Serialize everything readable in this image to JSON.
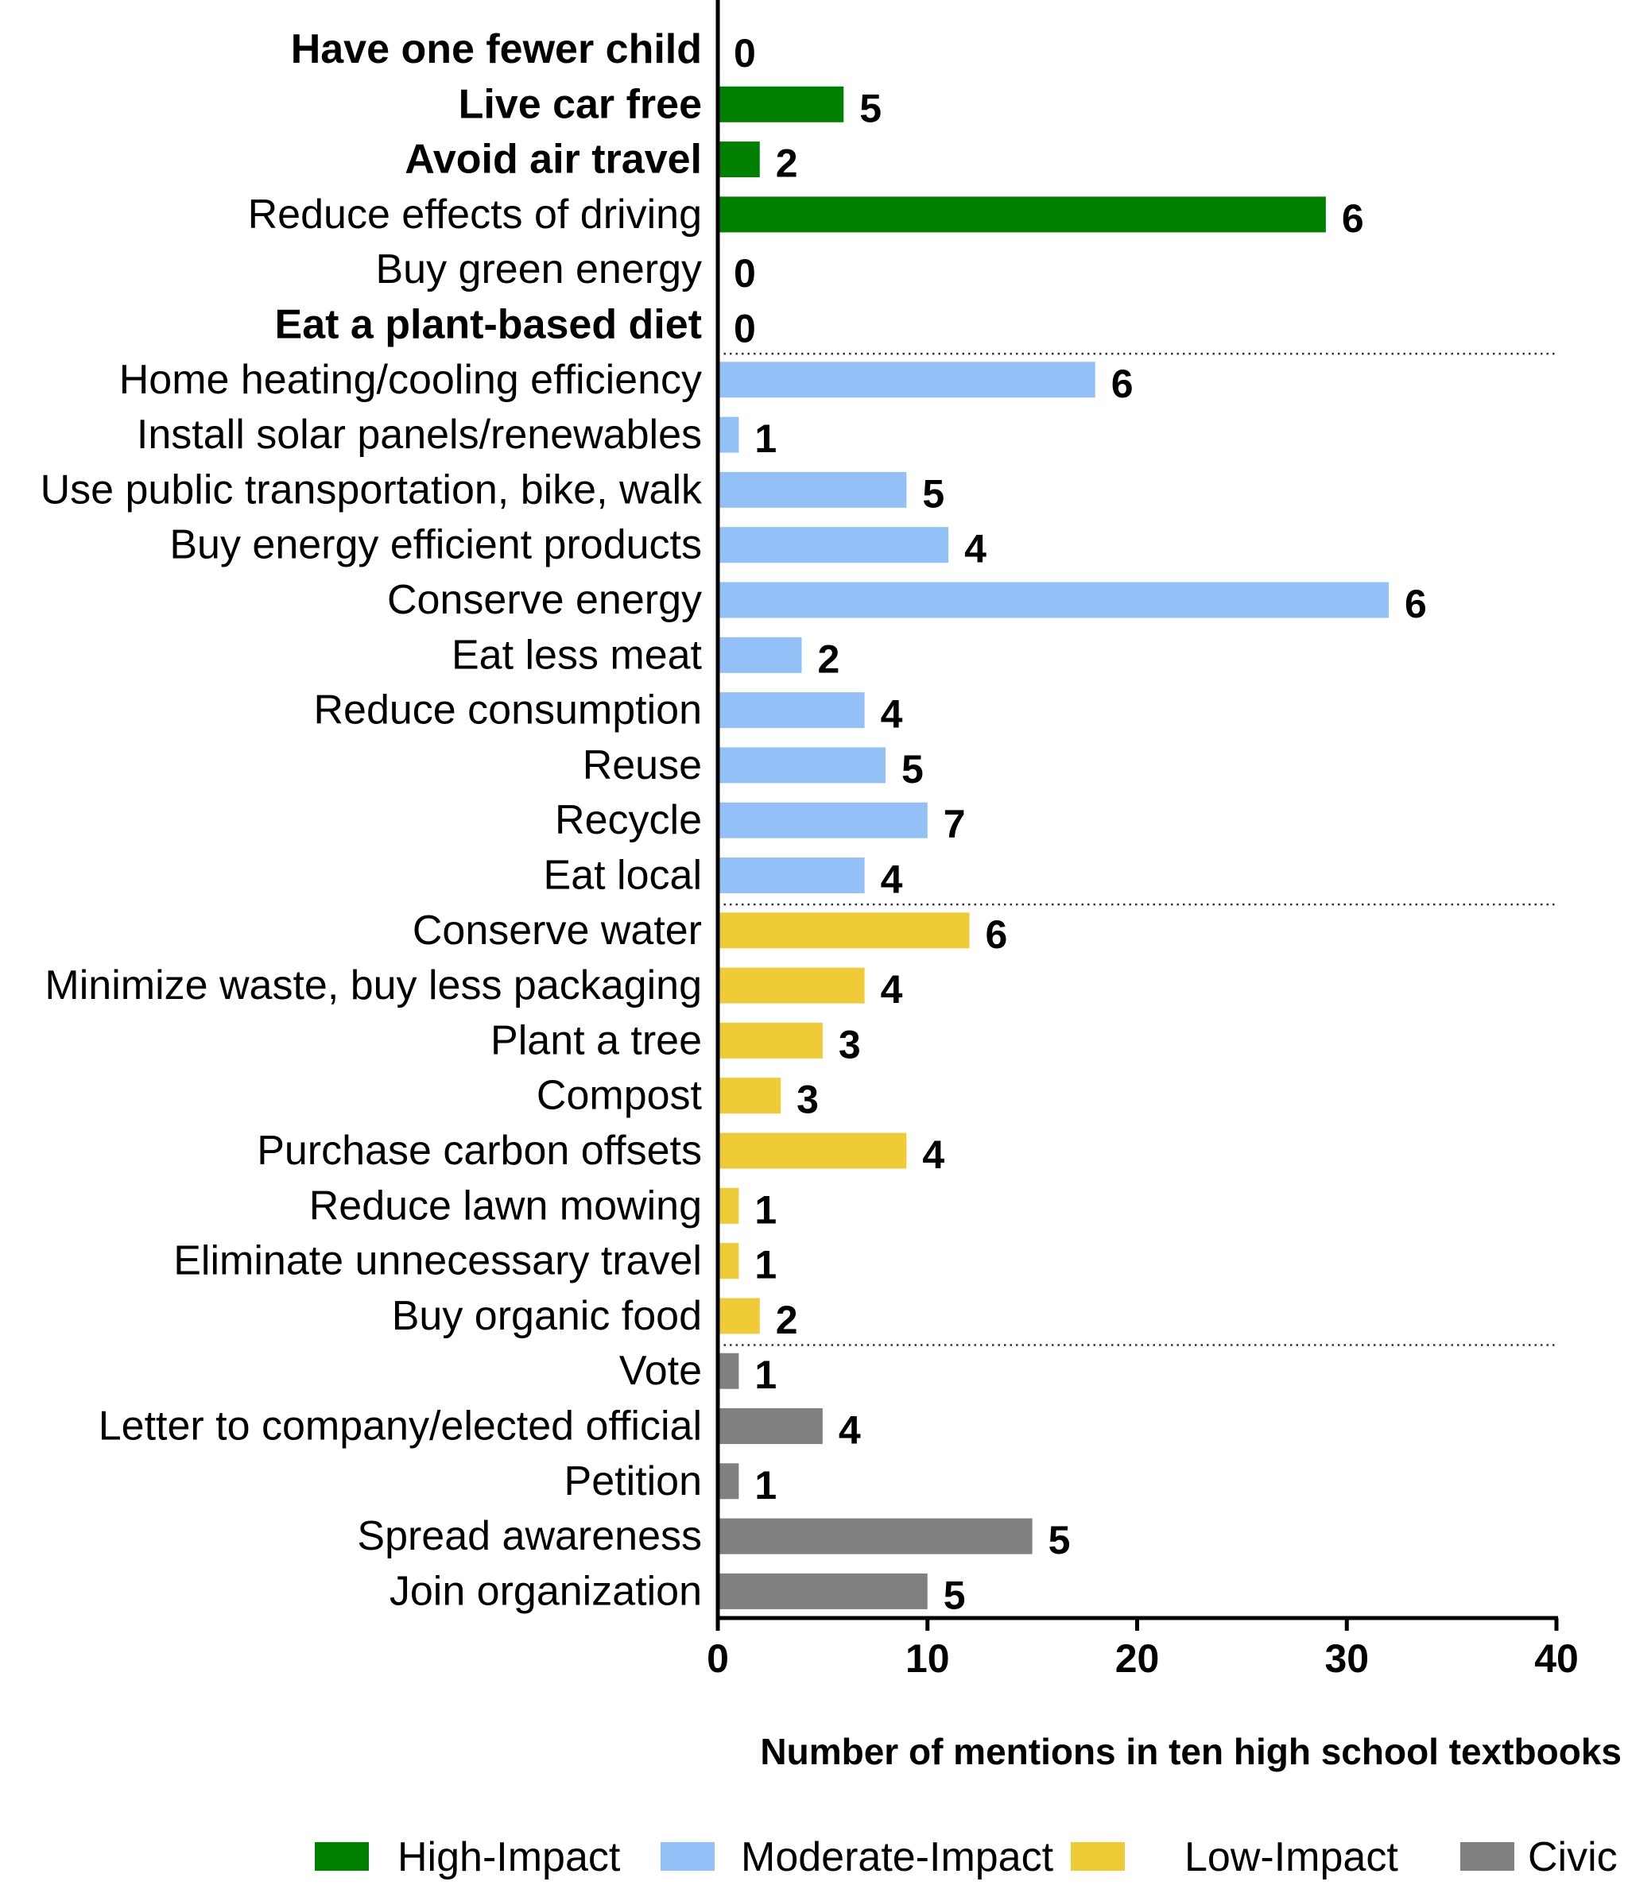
{
  "chart_data": {
    "type": "bar",
    "orientation": "horizontal",
    "xlabel": "Number of mentions in ten high school textbooks",
    "xlim": [
      0,
      40
    ],
    "xticks": [
      0,
      10,
      20,
      30,
      40
    ],
    "groups": [
      {
        "name": "High-Impact",
        "color": "#008000"
      },
      {
        "name": "Moderate-Impact",
        "color": "#93c0f6"
      },
      {
        "name": "Low-Impact",
        "color": "#f0cb38"
      },
      {
        "name": "Civic",
        "color": "#808080"
      }
    ],
    "items": [
      {
        "label": "Have one fewer child",
        "value": 0,
        "annotation": "0",
        "group": "High-Impact",
        "bold": true
      },
      {
        "label": "Live car free",
        "value": 6,
        "annotation": "5",
        "group": "High-Impact",
        "bold": true
      },
      {
        "label": "Avoid air travel",
        "value": 2,
        "annotation": "2",
        "group": "High-Impact",
        "bold": true
      },
      {
        "label": "Reduce effects of driving",
        "value": 29,
        "annotation": "6",
        "group": "High-Impact",
        "bold": false
      },
      {
        "label": "Buy green energy",
        "value": 0,
        "annotation": "0",
        "group": "High-Impact",
        "bold": false
      },
      {
        "label": "Eat a plant-based diet",
        "value": 0,
        "annotation": "0",
        "group": "High-Impact",
        "bold": true
      },
      {
        "label": "Home heating/cooling efficiency",
        "value": 18,
        "annotation": "6",
        "group": "Moderate-Impact",
        "bold": false
      },
      {
        "label": "Install solar panels/renewables",
        "value": 1,
        "annotation": "1",
        "group": "Moderate-Impact",
        "bold": false
      },
      {
        "label": "Use public transportation, bike, walk",
        "value": 9,
        "annotation": "5",
        "group": "Moderate-Impact",
        "bold": false
      },
      {
        "label": "Buy energy efficient products",
        "value": 11,
        "annotation": "4",
        "group": "Moderate-Impact",
        "bold": false
      },
      {
        "label": "Conserve energy",
        "value": 32,
        "annotation": "6",
        "group": "Moderate-Impact",
        "bold": false
      },
      {
        "label": "Eat less meat",
        "value": 4,
        "annotation": "2",
        "group": "Moderate-Impact",
        "bold": false
      },
      {
        "label": "Reduce consumption",
        "value": 7,
        "annotation": "4",
        "group": "Moderate-Impact",
        "bold": false
      },
      {
        "label": "Reuse",
        "value": 8,
        "annotation": "5",
        "group": "Moderate-Impact",
        "bold": false
      },
      {
        "label": "Recycle",
        "value": 10,
        "annotation": "7",
        "group": "Moderate-Impact",
        "bold": false
      },
      {
        "label": "Eat local",
        "value": 7,
        "annotation": "4",
        "group": "Moderate-Impact",
        "bold": false
      },
      {
        "label": "Conserve water",
        "value": 12,
        "annotation": "6",
        "group": "Low-Impact",
        "bold": false
      },
      {
        "label": "Minimize waste, buy less packaging",
        "value": 7,
        "annotation": "4",
        "group": "Low-Impact",
        "bold": false
      },
      {
        "label": "Plant a tree",
        "value": 5,
        "annotation": "3",
        "group": "Low-Impact",
        "bold": false
      },
      {
        "label": "Compost",
        "value": 3,
        "annotation": "3",
        "group": "Low-Impact",
        "bold": false
      },
      {
        "label": "Purchase carbon offsets",
        "value": 9,
        "annotation": "4",
        "group": "Low-Impact",
        "bold": false
      },
      {
        "label": "Reduce lawn mowing",
        "value": 1,
        "annotation": "1",
        "group": "Low-Impact",
        "bold": false
      },
      {
        "label": "Eliminate unnecessary travel",
        "value": 1,
        "annotation": "1",
        "group": "Low-Impact",
        "bold": false
      },
      {
        "label": "Buy organic food",
        "value": 2,
        "annotation": "2",
        "group": "Low-Impact",
        "bold": false
      },
      {
        "label": "Vote",
        "value": 1,
        "annotation": "1",
        "group": "Civic",
        "bold": false
      },
      {
        "label": "Letter to company/elected official",
        "value": 5,
        "annotation": "4",
        "group": "Civic",
        "bold": false
      },
      {
        "label": "Petition",
        "value": 1,
        "annotation": "1",
        "group": "Civic",
        "bold": false
      },
      {
        "label": "Spread awareness",
        "value": 15,
        "annotation": "5",
        "group": "Civic",
        "bold": false
      },
      {
        "label": "Join organization",
        "value": 10,
        "annotation": "5",
        "group": "Civic",
        "bold": false
      }
    ],
    "group_separators": "dotted",
    "legend_position": "bottom"
  }
}
